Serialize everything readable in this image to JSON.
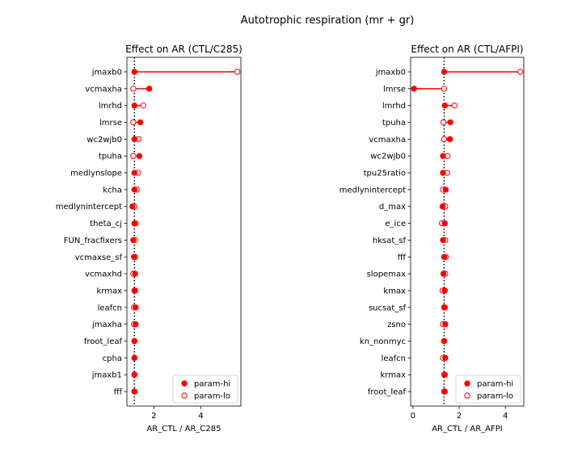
{
  "suptitle": "Autotrophic respiration (mr + gr)",
  "colors": {
    "marker": "#ff0000",
    "reference": "#000000",
    "axis": "#000000"
  },
  "chart_data": [
    {
      "type": "scatter",
      "title": "Effect on AR (CTL/C285)",
      "xlabel": "AR_CTL / AR_C285",
      "xlim": [
        0.85,
        5.7
      ],
      "xticks": [
        2,
        4
      ],
      "reference_x": 1.17,
      "legend_position": "lower-right",
      "legend": {
        "hi": "param-hi",
        "lo": "param-lo"
      },
      "categories": [
        "jmaxb0",
        "vcmaxha",
        "lmrhd",
        "lmrse",
        "wc2wjb0",
        "tpuha",
        "medlynslope",
        "kcha",
        "medlynintercept",
        "theta_cj",
        "FUN_fracfixers",
        "vcmaxse_sf",
        "vcmaxhd",
        "krmax",
        "leafcn",
        "jmaxha",
        "froot_leaf",
        "cpha",
        "jmaxb1",
        "fff"
      ],
      "series": [
        {
          "name": "param-hi",
          "fill": "filled",
          "values": [
            1.17,
            1.8,
            1.17,
            1.42,
            1.17,
            1.38,
            1.17,
            1.17,
            1.08,
            1.17,
            1.12,
            1.15,
            1.2,
            1.17,
            1.22,
            1.22,
            1.17,
            1.17,
            1.17,
            1.17
          ]
        },
        {
          "name": "param-lo",
          "fill": "open",
          "values": [
            5.55,
            1.12,
            1.55,
            1.12,
            1.35,
            1.12,
            1.32,
            1.27,
            1.17,
            1.22,
            1.2,
            1.2,
            1.12,
            1.2,
            1.15,
            1.15,
            1.17,
            1.17,
            1.17,
            1.17
          ]
        }
      ]
    },
    {
      "type": "scatter",
      "title": "Effect on AR (CTL/AFPI)",
      "xlabel": "AR_CTL / AR_AFPI",
      "xlim": [
        -0.1,
        4.8
      ],
      "xticks": [
        0,
        2,
        4
      ],
      "reference_x": 1.35,
      "legend_position": "lower-right",
      "legend": {
        "hi": "param-hi",
        "lo": "param-lo"
      },
      "categories": [
        "jmaxb0",
        "lmrse",
        "lmrhd",
        "tpuha",
        "vcmaxha",
        "wc2wjb0",
        "tpu25ratio",
        "medlynintercept",
        "d_max",
        "e_ice",
        "hksat_sf",
        "fff",
        "slopemax",
        "kmax",
        "sucsat_sf",
        "zsno",
        "kn_nonmyc",
        "leafcn",
        "krmax",
        "froot_leaf"
      ],
      "series": [
        {
          "name": "param-hi",
          "fill": "filled",
          "values": [
            1.35,
            0.05,
            1.38,
            1.62,
            1.6,
            1.3,
            1.3,
            1.42,
            1.28,
            1.38,
            1.3,
            1.35,
            1.32,
            1.38,
            1.38,
            1.4,
            1.35,
            1.4,
            1.38,
            1.35
          ]
        },
        {
          "name": "param-lo",
          "fill": "open",
          "values": [
            4.65,
            1.35,
            1.8,
            1.32,
            1.35,
            1.5,
            1.48,
            1.3,
            1.4,
            1.25,
            1.4,
            1.42,
            1.4,
            1.28,
            1.35,
            1.3,
            1.35,
            1.3,
            1.35,
            1.38
          ]
        }
      ]
    }
  ]
}
